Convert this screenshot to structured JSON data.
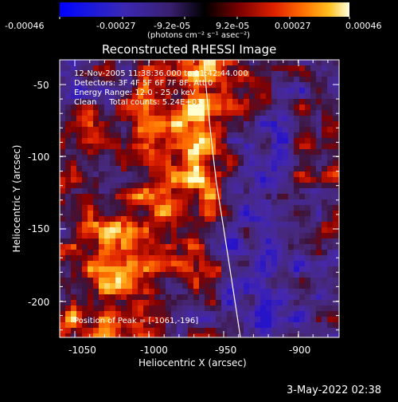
{
  "colorbar": {
    "tick_labels": [
      "-0.00046",
      "-0.00027",
      "-9.2e-05",
      "9.2e-05",
      "0.00027",
      "0.00046"
    ],
    "units_label": "(photons cm⁻² s⁻¹ asec⁻²)"
  },
  "plot": {
    "title": "Reconstructed RHESSI Image",
    "xlabel": "Heliocentric X (arcsec)",
    "ylabel": "Heliocentric Y (arcsec)",
    "x_ticks": [
      "-1050",
      "-1000",
      "-950",
      "-900"
    ],
    "y_ticks": [
      "-50",
      "-100",
      "-150",
      "-200"
    ],
    "info_lines": [
      "12-Nov-2005 11:38:36.000 to 11:42:44.000",
      "Detectors: 3F 4F 5F 6F 7F 8F, Att 0",
      "Energy Range: 12.0 - 25.0 keV",
      "Clean     Total counts: 5.24E+03"
    ],
    "peak_label": "Position of Peak = [-1061,-196]"
  },
  "footer": {
    "timestamp": "3-May-2022 02:38"
  },
  "colors": {
    "background": "#000000",
    "text": "#ffffff",
    "limb": "#ffffff"
  }
}
